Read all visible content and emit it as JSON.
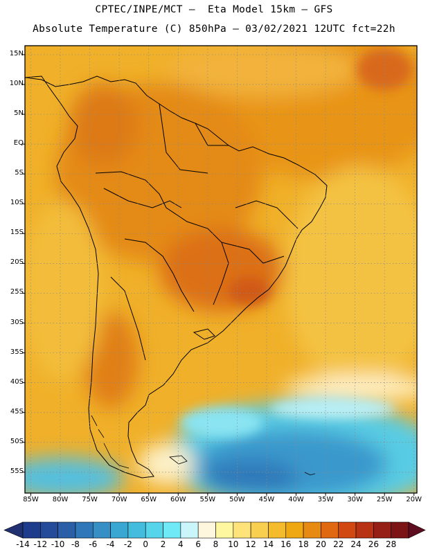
{
  "header": {
    "title_line1": "CPTEC/INPE/MCT –  Eta Model 15km – GFS",
    "title_line2": "Absolute Temperature (C) 850hPa – 03/02/2021 12UTC fct=22h"
  },
  "map": {
    "lat_labels": [
      "15N",
      "10N",
      "5N",
      "EQ",
      "5S",
      "10S",
      "15S",
      "20S",
      "25S",
      "30S",
      "35S",
      "40S",
      "45S",
      "50S",
      "55S"
    ],
    "lon_labels": [
      "85W",
      "80W",
      "75W",
      "70W",
      "65W",
      "60W",
      "55W",
      "50W",
      "45W",
      "40W",
      "35W",
      "30W",
      "25W",
      "20W"
    ],
    "extent": {
      "lon_min": -86,
      "lon_max": -19.5,
      "lat_min": -58.5,
      "lat_max": 16.5
    }
  },
  "colorbar": {
    "labels": [
      "-14",
      "-12",
      "-10",
      "-8",
      "-6",
      "-4",
      "-2",
      "0",
      "2",
      "4",
      "6",
      "8",
      "10",
      "12",
      "14",
      "16",
      "18",
      "20",
      "22",
      "24",
      "26",
      "28"
    ],
    "colors": [
      "#1e3c8c",
      "#234b99",
      "#2a5fa8",
      "#2f77b8",
      "#3690c6",
      "#3aa7d2",
      "#44bcdd",
      "#55d4ea",
      "#6fe9f5",
      "#caf5fb",
      "#fff6de",
      "#fff7a0",
      "#fde37a",
      "#f9cf50",
      "#f4bb2c",
      "#efa812",
      "#e78a12",
      "#df6811",
      "#d24812",
      "#b83314",
      "#962016",
      "#7c1416"
    ],
    "under_color": "#203070",
    "over_color": "#5e0d20"
  }
}
